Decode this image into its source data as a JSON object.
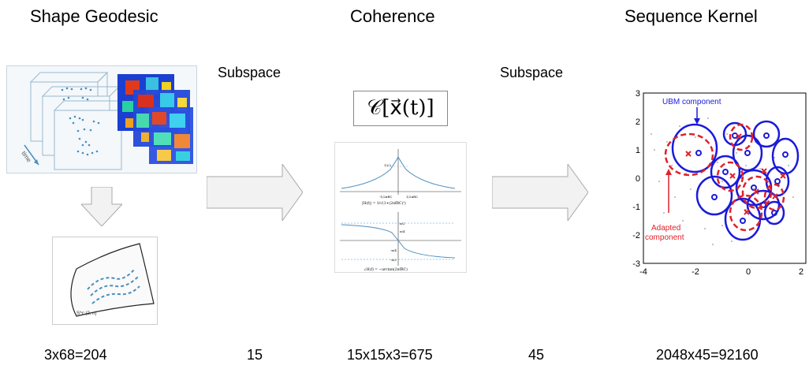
{
  "titles": {
    "shape_geodesic": "Shape Geodesic",
    "coherence": "Coherence",
    "sequence_kernel": "Sequence Kernel"
  },
  "arrows": {
    "left_label": "Subspace",
    "right_label": "Subspace"
  },
  "formula": "𝒞[x⃗(t)]",
  "counts": {
    "shape": "3x68=204",
    "subspace1": "15",
    "coherence": "15x15x3=675",
    "subspace2": "45",
    "kernel": "2048x45=92160"
  },
  "illustrations": {
    "time_label": "time",
    "manifold_label": "S^c (2, n)"
  },
  "coherence_plots": {
    "top_caption": "|H(f)| = 1/√(1+(2πfRC)²)",
    "top_marks": [
      "1/√2",
      "-1/2πRC",
      "1/2πRC"
    ],
    "bottom_caption": "∠H(f) = −arctan(2πfRC)",
    "bottom_marks": [
      "π/2",
      "π/4",
      "-π/4",
      "-π/2"
    ]
  },
  "kernel_plot": {
    "ubm_label": "UBM component",
    "adapted_label": [
      "Adapted",
      "component"
    ],
    "x_ticks": [
      "-4",
      "-2",
      "0",
      "2"
    ],
    "y_ticks": [
      "3",
      "2",
      "1",
      "0",
      "-1",
      "-2",
      "-3"
    ],
    "ubm_color": "#1a1adb",
    "adapted_color": "#e0202a"
  }
}
